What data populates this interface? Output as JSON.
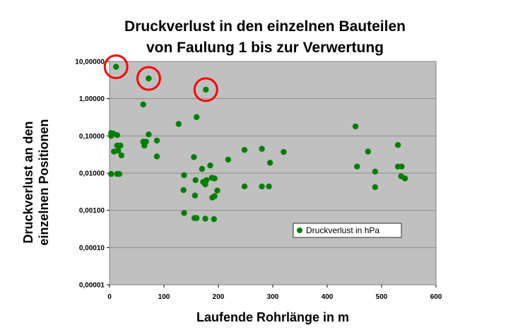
{
  "chart_data": {
    "type": "scatter",
    "title_line1": "Druckverlust in den einzelnen Bauteilen",
    "title_line2": "von Faulung 1 bis zur Verwertung",
    "xlabel": "Laufende Rohrlänge in m",
    "ylabel_line1": "Druckverlust an den",
    "ylabel_line2": "einzelnen Positionen",
    "xlim": [
      0,
      600
    ],
    "ylim": [
      1e-05,
      10
    ],
    "y_scale": "log",
    "x_ticks": [
      "0",
      "100",
      "200",
      "300",
      "400",
      "500",
      "600"
    ],
    "y_ticks": [
      "0,00001",
      "0,00010",
      "0,00100",
      "0,01000",
      "0,10000",
      "1,00000",
      "10,00000"
    ],
    "grid": "horizontal",
    "legend_position": "lower-right",
    "plot_background": "#c0c0c0",
    "marker_color": "#008000",
    "highlight_color": "#ff0000",
    "series": [
      {
        "name": "Druckverlust  in hPa",
        "points": [
          [
            12,
            7.2
          ],
          [
            72,
            3.5
          ],
          [
            177,
            1.75
          ],
          [
            62,
            0.7
          ],
          [
            160,
            0.32
          ],
          [
            127,
            0.21
          ],
          [
            452,
            0.18
          ],
          [
            3,
            0.12
          ],
          [
            7,
            0.115
          ],
          [
            14,
            0.105
          ],
          [
            3,
            0.1
          ],
          [
            72,
            0.11
          ],
          [
            62,
            0.07
          ],
          [
            67,
            0.07
          ],
          [
            87,
            0.075
          ],
          [
            64,
            0.055
          ],
          [
            14,
            0.055
          ],
          [
            20,
            0.055
          ],
          [
            8,
            0.038
          ],
          [
            16,
            0.04
          ],
          [
            22,
            0.03
          ],
          [
            87,
            0.028
          ],
          [
            155,
            0.027
          ],
          [
            248,
            0.042
          ],
          [
            280,
            0.045
          ],
          [
            320,
            0.037
          ],
          [
            475,
            0.038
          ],
          [
            530,
            0.057
          ],
          [
            218,
            0.023
          ],
          [
            295,
            0.019
          ],
          [
            185,
            0.016
          ],
          [
            455,
            0.015
          ],
          [
            530,
            0.015
          ],
          [
            537,
            0.015
          ],
          [
            170,
            0.013
          ],
          [
            3,
            0.0095
          ],
          [
            14,
            0.0095
          ],
          [
            18,
            0.0095
          ],
          [
            137,
            0.0088
          ],
          [
            488,
            0.011
          ],
          [
            536,
            0.0082
          ],
          [
            543,
            0.0072
          ],
          [
            158,
            0.0065
          ],
          [
            172,
            0.0058
          ],
          [
            178,
            0.0065
          ],
          [
            188,
            0.0075
          ],
          [
            193,
            0.0072
          ],
          [
            176,
            0.005
          ],
          [
            136,
            0.0035
          ],
          [
            198,
            0.0034
          ],
          [
            248,
            0.0044
          ],
          [
            280,
            0.0044
          ],
          [
            293,
            0.0044
          ],
          [
            488,
            0.0042
          ],
          [
            157,
            0.0025
          ],
          [
            193,
            0.0024
          ],
          [
            189,
            0.0022
          ],
          [
            137,
            0.00085
          ],
          [
            156,
            0.00062
          ],
          [
            160,
            0.00062
          ],
          [
            176,
            0.0006
          ],
          [
            192,
            0.00058
          ]
        ]
      }
    ],
    "highlighted_points": [
      [
        12,
        7.2
      ],
      [
        72,
        3.5
      ],
      [
        177,
        1.75
      ]
    ]
  }
}
